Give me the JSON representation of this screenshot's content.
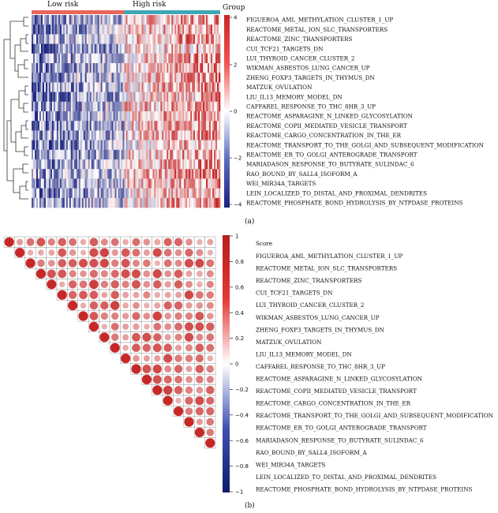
{
  "chart_data": [
    {
      "type": "heatmap",
      "panel_label": "(a)",
      "group_annotation": {
        "title": "Group",
        "groups": [
          "Low risk",
          "High risk"
        ],
        "colors": [
          "#e8665a",
          "#3fa6b5"
        ]
      },
      "colorbar": {
        "range": [
          -4,
          4
        ],
        "ticks": [
          "4",
          "2",
          "0",
          "−2",
          "−4"
        ],
        "colors": [
          "#1a237e",
          "#ffffff",
          "#d32f2f"
        ]
      },
      "rows": [
        "FIGUEROA_AML_METHYLATION_CLUSTER_1_UP",
        "REACTOME_METAL_ION_SLC_TRANSPORTERS",
        "REACTOME_ZINC_TRANSPORTERS",
        "CUI_TCF21_TARGETS_DN",
        "LUI_THYROID_CANCER_CLUSTER_2",
        "WIKMAN_ASBESTOS_LUNG_CANCER_UP",
        "ZHENG_FOXP3_TARGETS_IN_THYMUS_DN",
        "MATZUK_OVULATION",
        "LIU_IL13_MEMORY_MODEL_DN",
        "CAFFAREL_RESPONSE_TO_THC_8HR_3_UP",
        "REACTOME_ASPARAGINE_N_LINKED_GLYCOSYLATION",
        "REACTOME_COPII_MEDIATED_VESICLE_TRANSPORT",
        "REACTOME_CARGO_CONCENTRATION_IN_THE_ER",
        "REACTOME_TRANSPORT_TO_THE_GOLGI_AND_SUBSEQUENT_MODIFICATION",
        "REACTOME_ER_TO_GOLGI_ANTEROGRADE_TRANSPORT",
        "MARIADASON_RESPONSE_TO_BUTYRATE_SULINDAC_6",
        "RAO_BOUND_BY_SALL4_ISOFORM_A",
        "WEI_MIR34A_TARGETS",
        "LEIN_LOCALIZED_TO_DISTAL_AND_PROXIMAL_DENDRITES",
        "REACTOME_PHOSPHATE_BOND_HYDROLYSIS_BY_NTPDASE_PROTEINS"
      ],
      "note": "Low-risk samples mostly blue (negative scores); high-risk samples mostly red (positive scores)."
    },
    {
      "type": "heatmap",
      "subtype": "correlation-upper-triangle",
      "panel_label": "(b)",
      "legend_title": "Score",
      "colorbar": {
        "range": [
          -1,
          1
        ],
        "ticks": [
          "1",
          "0.8",
          "0.6",
          "0.4",
          "0.2",
          "0",
          "−0.2",
          "−0.4",
          "−0.6",
          "−0.8",
          "−1"
        ],
        "colors": [
          "#1a237e",
          "#ffffff",
          "#c62828"
        ]
      },
      "rows": [
        "FIGUEROA_AML_METHYLATION_CLUSTER_1_UP",
        "REACTOME_METAL_ION_SLC_TRANSPORTERS",
        "REACTOME_ZINC_TRANSPORTERS",
        "CUI_TCF21_TARGETS_DN",
        "LUI_THYROID_CANCER_CLUSTER_2",
        "WIKMAN_ASBESTOS_LUNG_CANCER_UP",
        "ZHENG_FOXP3_TARGETS_IN_THYMUS_DN",
        "MATZUK_OVULATION",
        "LIU_IL13_MEMORY_MODEL_DN",
        "CAFFAREL_RESPONSE_TO_THC_8HR_3_UP",
        "REACTOME_ASPARAGINE_N_LINKED_GLYCOSYLATION",
        "REACTOME_COPII_MEDIATED_VESICLE_TRANSPORT",
        "REACTOME_CARGO_CONCENTRATION_IN_THE_ER",
        "REACTOME_TRANSPORT_TO_THE_GOLGI_AND_SUBSEQUENT_MODIFICATION",
        "REACTOME_ER_TO_GOLGI_ANTEROGRADE_TRANSPORT",
        "MARIADASON_RESPONSE_TO_BUTYRATE_SULINDAC_6",
        "RAO_BOUND_BY_SALL4_ISOFORM_A",
        "WEI_MIR34A_TARGETS",
        "LEIN_LOCALIZED_TO_DISTAL_AND_PROXIMAL_DENDRITES",
        "REACTOME_PHOSPHATE_BOND_HYDROLYSIS_BY_NTPDASE_PROTEINS"
      ],
      "diagonal": 1,
      "approx_off_diagonal_range": [
        0.3,
        0.9
      ],
      "note": "All pairwise correlations positive; circle size and color encode magnitude; cell values too small to read."
    }
  ]
}
